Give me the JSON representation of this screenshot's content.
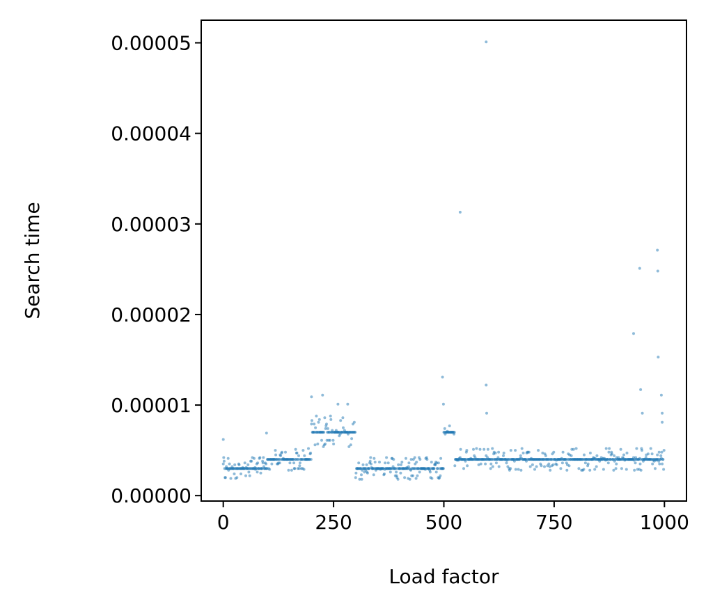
{
  "chart_data": {
    "type": "scatter",
    "title": "",
    "xlabel": "Load factor",
    "ylabel": "Search time",
    "xlim": [
      -50,
      1050
    ],
    "ylim": [
      -6e-07,
      5.25e-05
    ],
    "x_ticks": [
      0,
      250,
      500,
      750,
      1000
    ],
    "x_tick_labels": [
      "0",
      "250",
      "500",
      "750",
      "1000"
    ],
    "y_ticks": [
      0,
      1e-05,
      2e-05,
      3e-05,
      4e-05,
      5e-05
    ],
    "y_tick_labels": [
      "0.00000",
      "0.00001",
      "0.00002",
      "0.00003",
      "0.00004",
      "0.00005"
    ],
    "grid": false,
    "legend": "none",
    "marker_color": "#1f77b4",
    "segments": [
      {
        "x_range": [
          0,
          100
        ],
        "typical": 3e-06,
        "spread": 1.2e-06
      },
      {
        "x_range": [
          100,
          200
        ],
        "typical": 4e-06,
        "spread": 1.2e-06
      },
      {
        "x_range": [
          200,
          300
        ],
        "typical": 7e-06,
        "spread": 1.8e-06
      },
      {
        "x_range": [
          300,
          500
        ],
        "typical": 3e-06,
        "spread": 1.2e-06
      },
      {
        "x_range": [
          500,
          525
        ],
        "typical": 7e-06,
        "spread": 1.2e-06
      },
      {
        "x_range": [
          525,
          1000
        ],
        "typical": 4e-06,
        "spread": 1.2e-06
      }
    ],
    "outliers": [
      {
        "x": 0,
        "y": 6.2e-06
      },
      {
        "x": 98,
        "y": 6.9e-06
      },
      {
        "x": 200,
        "y": 1.09e-05
      },
      {
        "x": 225,
        "y": 1.11e-05
      },
      {
        "x": 260,
        "y": 1.01e-05
      },
      {
        "x": 282,
        "y": 1.01e-05
      },
      {
        "x": 497,
        "y": 1.31e-05
      },
      {
        "x": 499,
        "y": 1.01e-05
      },
      {
        "x": 537,
        "y": 3.13e-05
      },
      {
        "x": 596,
        "y": 5.01e-05
      },
      {
        "x": 596,
        "y": 1.22e-05
      },
      {
        "x": 597,
        "y": 9.1e-06
      },
      {
        "x": 930,
        "y": 1.79e-05
      },
      {
        "x": 944,
        "y": 2.51e-05
      },
      {
        "x": 946,
        "y": 1.17e-05
      },
      {
        "x": 950,
        "y": 9.1e-06
      },
      {
        "x": 984,
        "y": 2.71e-05
      },
      {
        "x": 985,
        "y": 2.48e-05
      },
      {
        "x": 986,
        "y": 1.53e-05
      },
      {
        "x": 993,
        "y": 1.11e-05
      },
      {
        "x": 995,
        "y": 9.1e-06
      },
      {
        "x": 995,
        "y": 8.1e-06
      }
    ]
  }
}
